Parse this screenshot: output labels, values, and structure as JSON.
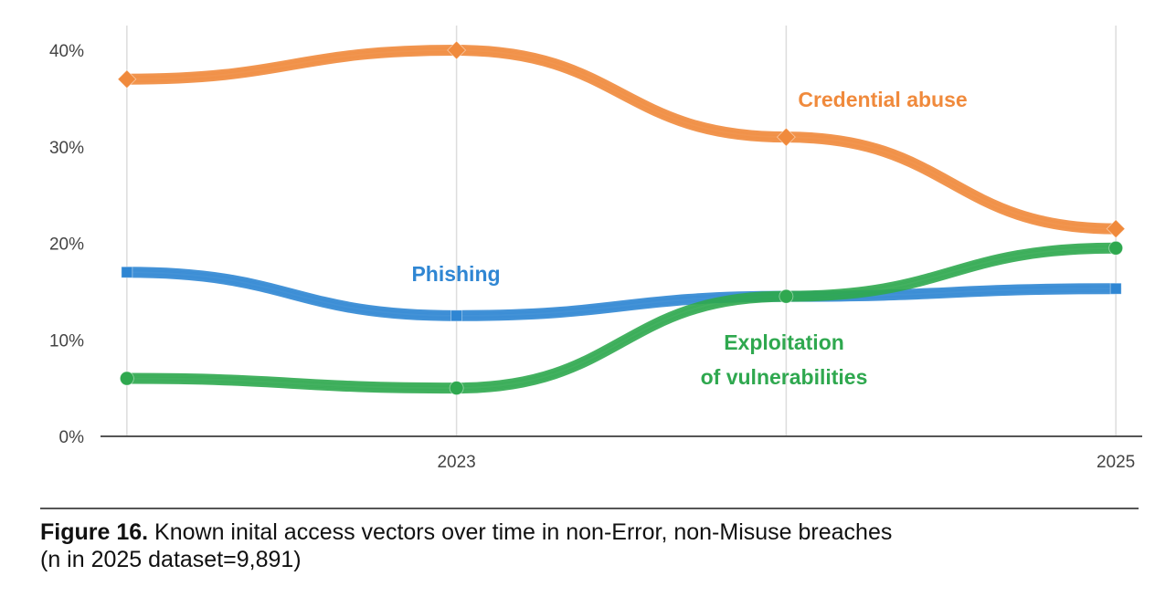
{
  "chart_data": {
    "type": "line",
    "x": [
      2022,
      2023,
      2024,
      2025
    ],
    "xticks": [
      {
        "value": 2023,
        "label": "2023"
      },
      {
        "value": 2025,
        "label": "2025"
      }
    ],
    "xlim": [
      2021.92,
      2025.08
    ],
    "ylim": [
      0,
      40
    ],
    "yticks": [
      {
        "value": 0,
        "label": "0%"
      },
      {
        "value": 10,
        "label": "10%"
      },
      {
        "value": 20,
        "label": "20%"
      },
      {
        "value": 30,
        "label": "30%"
      },
      {
        "value": 40,
        "label": "40%"
      }
    ],
    "grid": "vertical",
    "series": [
      {
        "name": "Credential abuse",
        "values": [
          37,
          40,
          31,
          21.5
        ],
        "color": "#f08a3c"
      },
      {
        "name": "Phishing",
        "values": [
          17,
          12.5,
          14.5,
          15.3
        ],
        "color": "#2f86d3"
      },
      {
        "name": "Exploitation of vulnerabilities",
        "values": [
          6,
          5,
          14.5,
          19.5
        ],
        "color": "#2fa84f"
      }
    ],
    "series_labels": [
      {
        "series": 0,
        "lines": [
          "Credential abuse"
        ]
      },
      {
        "series": 1,
        "lines": [
          "Phishing"
        ]
      },
      {
        "series": 2,
        "lines": [
          "Exploitation",
          "of vulnerabilities"
        ]
      }
    ]
  },
  "caption": {
    "figure_label": "Figure 16.",
    "line1": "Known inital access vectors over time in non-Error, non-Misuse breaches",
    "line2": "(n in 2025 dataset=9,891)"
  }
}
